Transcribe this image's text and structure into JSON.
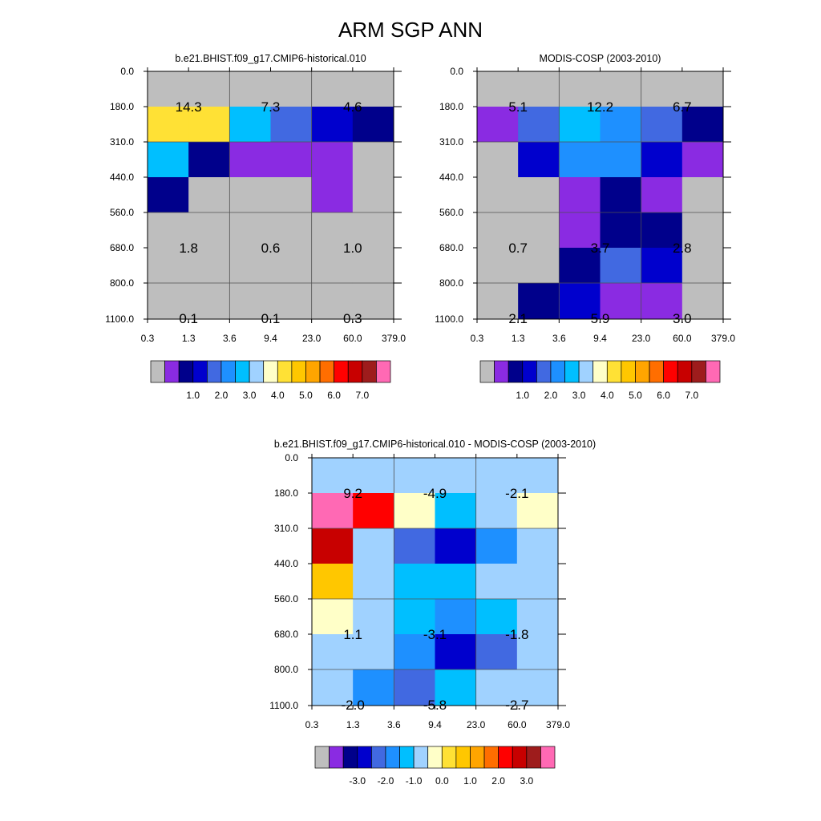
{
  "title": "ARM SGP ANN",
  "colors": {
    "background": "#ffffff",
    "missing": "#bebebe",
    "axis": "#000000",
    "gridline": "#505050"
  },
  "chart_data": [
    {
      "type": "heatmap",
      "title": "b.e21.BHIST.f09_g17.CMIP6-historical.010",
      "x_ticks": [
        "0.3",
        "1.3",
        "3.6",
        "9.4",
        "23.0",
        "60.0",
        "379.0"
      ],
      "y_ticks": [
        "0.0",
        "180.0",
        "310.0",
        "440.0",
        "560.0",
        "680.0",
        "800.0",
        "1100.0"
      ],
      "cell_value_order": "rows top to bottom (pressure 0-180 ... 800-1100), columns left to right (tau 0.3-1.3 ... 60-379); values are the color-bin index of each cell (-1 = missing/gray)",
      "cells": [
        [
          -1,
          -1,
          -1,
          -1,
          -1,
          -1
        ],
        [
          8,
          8,
          5,
          3,
          2,
          1
        ],
        [
          5,
          1,
          0,
          0,
          0,
          -1
        ],
        [
          1,
          -1,
          -1,
          -1,
          0,
          -1
        ],
        [
          -1,
          -1,
          -1,
          -1,
          -1,
          -1
        ],
        [
          -1,
          -1,
          -1,
          -1,
          -1,
          -1
        ],
        [
          -1,
          -1,
          -1,
          -1,
          -1,
          -1
        ]
      ],
      "annotations": [
        {
          "text": "14.3",
          "col": 0.5,
          "row": 0.5
        },
        {
          "text": "7.3",
          "col": 1.5,
          "row": 0.5
        },
        {
          "text": "4.6",
          "col": 2.5,
          "row": 0.5
        },
        {
          "text": "1.8",
          "col": 0.5,
          "row": 2.5
        },
        {
          "text": "0.6",
          "col": 1.5,
          "row": 2.5
        },
        {
          "text": "1.0",
          "col": 2.5,
          "row": 2.5
        },
        {
          "text": "0.1",
          "col": 0.5,
          "row": 3.5
        },
        {
          "text": "0.1",
          "col": 1.5,
          "row": 3.5
        },
        {
          "text": "0.3",
          "col": 2.5,
          "row": 3.5
        }
      ],
      "colorbar": {
        "colors": [
          "#bebebe",
          "#8a2be2",
          "#00008b",
          "#0000cd",
          "#4169e1",
          "#1e90ff",
          "#00bfff",
          "#a0d2ff",
          "#ffffc8",
          "#ffe135",
          "#ffc700",
          "#ffa500",
          "#ff6e00",
          "#ff0000",
          "#c80000",
          "#9e1c1c",
          "#ff69b4"
        ],
        "labels": [
          "1.0",
          "2.0",
          "3.0",
          "4.0",
          "5.0",
          "6.0",
          "7.0"
        ]
      }
    },
    {
      "type": "heatmap",
      "title": "MODIS-COSP (2003-2010)",
      "x_ticks": [
        "0.3",
        "1.3",
        "3.6",
        "9.4",
        "23.0",
        "60.0",
        "379.0"
      ],
      "y_ticks": [
        "0.0",
        "180.0",
        "310.0",
        "440.0",
        "560.0",
        "680.0",
        "800.0",
        "1100.0"
      ],
      "cell_value_order": "rows top to bottom, columns left to right; values are the color-bin index of each cell (-1 = missing/gray)",
      "cells": [
        [
          -1,
          -1,
          -1,
          -1,
          -1,
          -1
        ],
        [
          0,
          3,
          5,
          4,
          3,
          1
        ],
        [
          -1,
          2,
          4,
          4,
          2,
          0
        ],
        [
          -1,
          -1,
          0,
          1,
          0,
          -1
        ],
        [
          -1,
          -1,
          0,
          1,
          1,
          -1
        ],
        [
          -1,
          -1,
          1,
          3,
          2,
          -1
        ],
        [
          -1,
          1,
          2,
          0,
          0,
          -1
        ]
      ],
      "annotations": [
        {
          "text": "5.1",
          "col": 0.5,
          "row": 0.5
        },
        {
          "text": "12.2",
          "col": 1.5,
          "row": 0.5
        },
        {
          "text": "6.7",
          "col": 2.5,
          "row": 0.5
        },
        {
          "text": "0.7",
          "col": 0.5,
          "row": 2.5
        },
        {
          "text": "3.7",
          "col": 1.5,
          "row": 2.5
        },
        {
          "text": "2.8",
          "col": 2.5,
          "row": 2.5
        },
        {
          "text": "2.1",
          "col": 0.5,
          "row": 3.5
        },
        {
          "text": "5.9",
          "col": 1.5,
          "row": 3.5
        },
        {
          "text": "3.0",
          "col": 2.5,
          "row": 3.5
        }
      ],
      "colorbar": {
        "colors": [
          "#bebebe",
          "#8a2be2",
          "#00008b",
          "#0000cd",
          "#4169e1",
          "#1e90ff",
          "#00bfff",
          "#a0d2ff",
          "#ffffc8",
          "#ffe135",
          "#ffc700",
          "#ffa500",
          "#ff6e00",
          "#ff0000",
          "#c80000",
          "#9e1c1c",
          "#ff69b4"
        ],
        "labels": [
          "1.0",
          "2.0",
          "3.0",
          "4.0",
          "5.0",
          "6.0",
          "7.0"
        ]
      }
    },
    {
      "type": "heatmap",
      "title": "b.e21.BHIST.f09_g17.CMIP6-historical.010 - MODIS-COSP (2003-2010)",
      "x_ticks": [
        "0.3",
        "1.3",
        "3.6",
        "9.4",
        "23.0",
        "60.0",
        "379.0"
      ],
      "y_ticks": [
        "0.0",
        "180.0",
        "310.0",
        "440.0",
        "560.0",
        "680.0",
        "800.0",
        "1100.0"
      ],
      "cell_value_order": "rows top to bottom, columns left to right; values are the color-bin index of each cell (-1 = missing/gray)",
      "cells": [
        [
          6,
          6,
          6,
          6,
          6,
          6
        ],
        [
          15,
          12,
          7,
          5,
          6,
          7
        ],
        [
          13,
          6,
          3,
          2,
          4,
          6
        ],
        [
          9,
          6,
          5,
          5,
          6,
          6
        ],
        [
          7,
          6,
          5,
          4,
          5,
          6
        ],
        [
          6,
          6,
          4,
          2,
          3,
          6
        ],
        [
          6,
          4,
          3,
          5,
          6,
          6
        ]
      ],
      "annotations": [
        {
          "text": "9.2",
          "col": 0.5,
          "row": 0.5
        },
        {
          "text": "-4.9",
          "col": 1.5,
          "row": 0.5
        },
        {
          "text": "-2.1",
          "col": 2.5,
          "row": 0.5
        },
        {
          "text": "1.1",
          "col": 0.5,
          "row": 2.5
        },
        {
          "text": "-3.1",
          "col": 1.5,
          "row": 2.5
        },
        {
          "text": "-1.8",
          "col": 2.5,
          "row": 2.5
        },
        {
          "text": "-2.0",
          "col": 0.5,
          "row": 3.5
        },
        {
          "text": "-5.8",
          "col": 1.5,
          "row": 3.5
        },
        {
          "text": "-2.7",
          "col": 2.5,
          "row": 3.5
        }
      ],
      "colorbar": {
        "colors": [
          "#bebebe",
          "#8a2be2",
          "#00008b",
          "#0000cd",
          "#4169e1",
          "#1e90ff",
          "#00bfff",
          "#a0d2ff",
          "#ffffc8",
          "#ffe135",
          "#ffc700",
          "#ffa500",
          "#ff6e00",
          "#ff0000",
          "#c80000",
          "#9e1c1c",
          "#ff69b4"
        ],
        "labels": [
          "-3.0",
          "-2.0",
          "-1.0",
          "0.0",
          "1.0",
          "2.0",
          "3.0"
        ]
      }
    }
  ]
}
